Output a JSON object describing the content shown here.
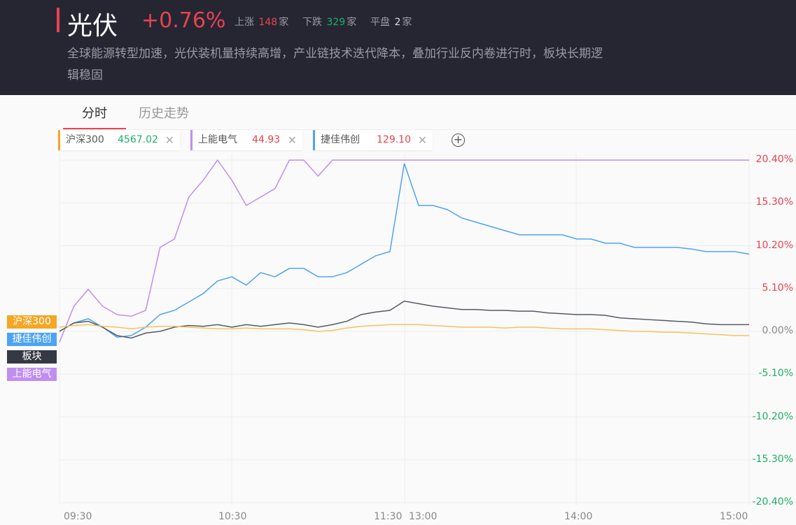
{
  "header": {
    "title": "光伏",
    "change": "+0.76%",
    "up_label": "上涨",
    "up_count": "148",
    "down_label": "下跌",
    "down_count": "329",
    "flat_label": "平盘",
    "flat_count": "2",
    "unit": "家",
    "description": "全球能源转型加速，光伏装机量持续高增，产业链技术迭代降本，叠加行业反内卷进行时，板块长期逻辑稳固"
  },
  "tabs": [
    {
      "label": "分时",
      "active": true
    },
    {
      "label": "历史走势",
      "active": false
    }
  ],
  "chips": [
    {
      "name": "沪深300",
      "value": "4567.02",
      "color": "#f5a623"
    },
    {
      "name": "上能电气",
      "value": "44.93",
      "color": "#c08ef0"
    },
    {
      "name": "捷佳伟创",
      "value": "129.10",
      "color": "#4da3f5"
    }
  ],
  "tags": [
    {
      "label": "沪深300",
      "color": "#f5a623"
    },
    {
      "label": "捷佳伟创",
      "color": "#4da3f5"
    },
    {
      "label": "板块",
      "color": "#353944"
    },
    {
      "label": "上能电气",
      "color": "#c08ef0"
    }
  ],
  "chart_data": {
    "type": "line",
    "x_ticks": [
      "09:30",
      "10:30",
      "11:30",
      "13:00",
      "14:00",
      "15:00"
    ],
    "y_ticks": [
      "20.40%",
      "15.30%",
      "10.20%",
      "5.10%",
      "0.00%",
      "-5.10%",
      "-10.20%",
      "-15.30%",
      "-20.40%"
    ],
    "ylim": [
      -20.4,
      20.4
    ],
    "x_minutes_step": 5,
    "series": [
      {
        "name": "上能电气",
        "color": "#c08ef0",
        "values": [
          -1.3,
          3,
          5,
          3,
          2,
          1.8,
          2.5,
          10,
          11,
          16,
          18,
          20.4,
          18,
          15,
          16,
          17,
          20.4,
          20.4,
          18.5,
          20.4,
          20.4,
          20.4,
          20.4,
          20.4,
          20.4,
          20.4,
          20.4,
          20.4,
          20.4,
          20.4,
          20.4,
          20.4,
          20.4,
          20.4,
          20.4,
          20.4,
          20.4,
          20.4,
          20.4,
          20.4,
          20.4,
          20.4,
          20.4,
          20.4,
          20.4,
          20.4,
          20.4,
          20.4,
          20.4
        ]
      },
      {
        "name": "捷佳伟创",
        "color": "#4da3f5",
        "values": [
          0,
          1,
          1.5,
          0.5,
          -0.7,
          -0.5,
          0.5,
          2,
          2.5,
          3.5,
          4.5,
          6,
          6.5,
          5.5,
          7,
          6.5,
          7.5,
          7.5,
          6.5,
          6.5,
          7,
          8,
          9,
          9.5,
          20.0,
          15,
          15,
          14.5,
          13.5,
          13,
          12.5,
          12,
          11.5,
          11.5,
          11.5,
          11.5,
          11,
          11,
          10.5,
          10.5,
          10,
          10,
          10,
          10,
          9.8,
          9.5,
          9.5,
          9.5,
          9.2
        ]
      },
      {
        "name": "板块",
        "color": "#555a63",
        "values": [
          0,
          1,
          1.2,
          0.5,
          -0.5,
          -0.8,
          -0.2,
          0,
          0.5,
          0.7,
          0.6,
          0.8,
          0.5,
          0.8,
          0.6,
          0.8,
          1,
          0.8,
          0.5,
          0.8,
          1.2,
          2,
          2.3,
          2.5,
          3.6,
          3.3,
          3,
          2.8,
          2.6,
          2.6,
          2.5,
          2.5,
          2.4,
          2.4,
          2.2,
          2.1,
          2,
          2,
          1.9,
          1.6,
          1.5,
          1.4,
          1.3,
          1.2,
          1.1,
          0.9,
          0.8,
          0.8,
          0.8
        ]
      },
      {
        "name": "沪深300",
        "color": "#f7c25a",
        "values": [
          0.5,
          0.7,
          0.8,
          0.6,
          0.5,
          0.3,
          0.5,
          0.6,
          0.6,
          0.5,
          0.4,
          0.3,
          0.3,
          0.4,
          0.3,
          0.3,
          0.3,
          0.2,
          0,
          0.1,
          0.4,
          0.6,
          0.7,
          0.8,
          0.8,
          0.8,
          0.7,
          0.6,
          0.5,
          0.5,
          0.5,
          0.4,
          0.5,
          0.5,
          0.4,
          0.3,
          0.3,
          0.3,
          0.2,
          0.1,
          0,
          0,
          -0.1,
          -0.1,
          -0.2,
          -0.3,
          -0.4,
          -0.5,
          -0.5
        ]
      }
    ]
  }
}
